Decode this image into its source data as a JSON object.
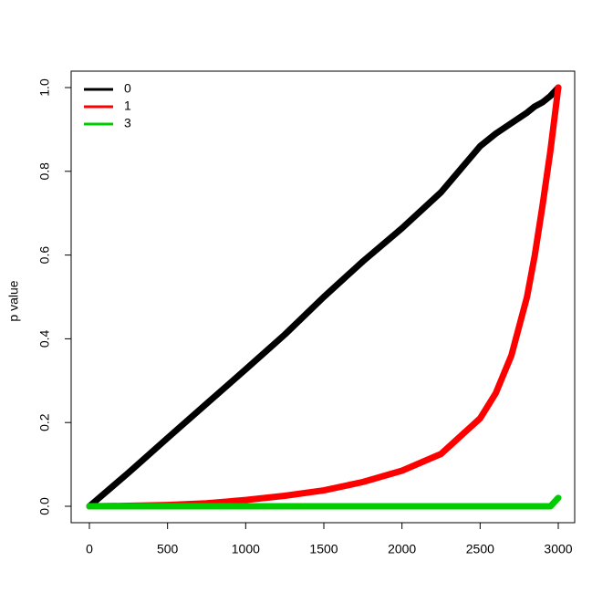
{
  "chart_data": {
    "type": "line",
    "y_label": "p value",
    "x": [
      0,
      250,
      500,
      750,
      1000,
      1250,
      1500,
      1750,
      2000,
      2250,
      2500,
      2600,
      2700,
      2800,
      2850,
      2900,
      2950,
      3000
    ],
    "series": [
      {
        "name": "0",
        "color": "#000000",
        "values": [
          0,
          0.08,
          0.163,
          0.245,
          0.327,
          0.41,
          0.5,
          0.585,
          0.664,
          0.75,
          0.86,
          0.89,
          0.915,
          0.94,
          0.955,
          0.965,
          0.98,
          1.0
        ]
      },
      {
        "name": "1",
        "color": "#ff0000",
        "values": [
          0,
          0.001,
          0.003,
          0.007,
          0.015,
          0.025,
          0.038,
          0.058,
          0.085,
          0.125,
          0.21,
          0.27,
          0.36,
          0.5,
          0.6,
          0.72,
          0.85,
          1.0
        ]
      },
      {
        "name": "3",
        "color": "#00cd00",
        "values": [
          0,
          0,
          0,
          0,
          0,
          0,
          0,
          0,
          0,
          0,
          0,
          0,
          0,
          0,
          0,
          0,
          0,
          0.02
        ]
      }
    ],
    "xlim": [
      0,
      3000
    ],
    "xticks": [
      0,
      500,
      1000,
      1500,
      2000,
      2500,
      3000
    ],
    "ylim": [
      0,
      1
    ],
    "yticks": [
      {
        "value": 0,
        "label": "0.0"
      },
      {
        "value": 0.2,
        "label": "0.2"
      },
      {
        "value": 0.4,
        "label": "0.4"
      },
      {
        "value": 0.6,
        "label": "0.6"
      },
      {
        "value": 0.8,
        "label": "0.8"
      },
      {
        "value": 1,
        "label": "1.0"
      }
    ],
    "legend": "top-left",
    "grid": false
  }
}
